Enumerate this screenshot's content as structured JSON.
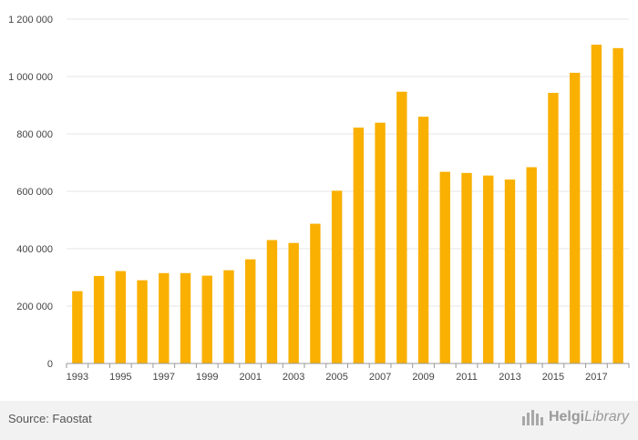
{
  "chart_data": {
    "type": "bar",
    "title": "",
    "xlabel": "",
    "ylabel": "",
    "categories": [
      "1993",
      "1994",
      "1995",
      "1996",
      "1997",
      "1998",
      "1999",
      "2000",
      "2001",
      "2002",
      "2003",
      "2004",
      "2005",
      "2006",
      "2007",
      "2008",
      "2009",
      "2010",
      "2011",
      "2012",
      "2013",
      "2014",
      "2015",
      "2016",
      "2017",
      "2018"
    ],
    "values": [
      252000,
      305000,
      322000,
      290000,
      315000,
      315000,
      306000,
      325000,
      363000,
      430000,
      420000,
      487000,
      602000,
      822000,
      839000,
      947000,
      860000,
      668000,
      664000,
      655000,
      641000,
      684000,
      943000,
      1013000,
      1111000,
      1099000
    ],
    "x_tick_labels": [
      "1993",
      "1995",
      "1997",
      "1999",
      "2001",
      "2003",
      "2005",
      "2007",
      "2009",
      "2011",
      "2013",
      "2015",
      "2017"
    ],
    "y_tick_labels": [
      "0",
      "200 000",
      "400 000",
      "600 000",
      "800 000",
      "1 000 000",
      "1 200 000"
    ],
    "ylim": [
      0,
      1200000
    ],
    "grid": true,
    "bar_color": "#f9b000",
    "grid_color": "#e6e6e6",
    "axis_color": "#999999"
  },
  "footer": {
    "source": "Source: Faostat",
    "logo_part1": "Helgi",
    "logo_part2": "Library"
  }
}
